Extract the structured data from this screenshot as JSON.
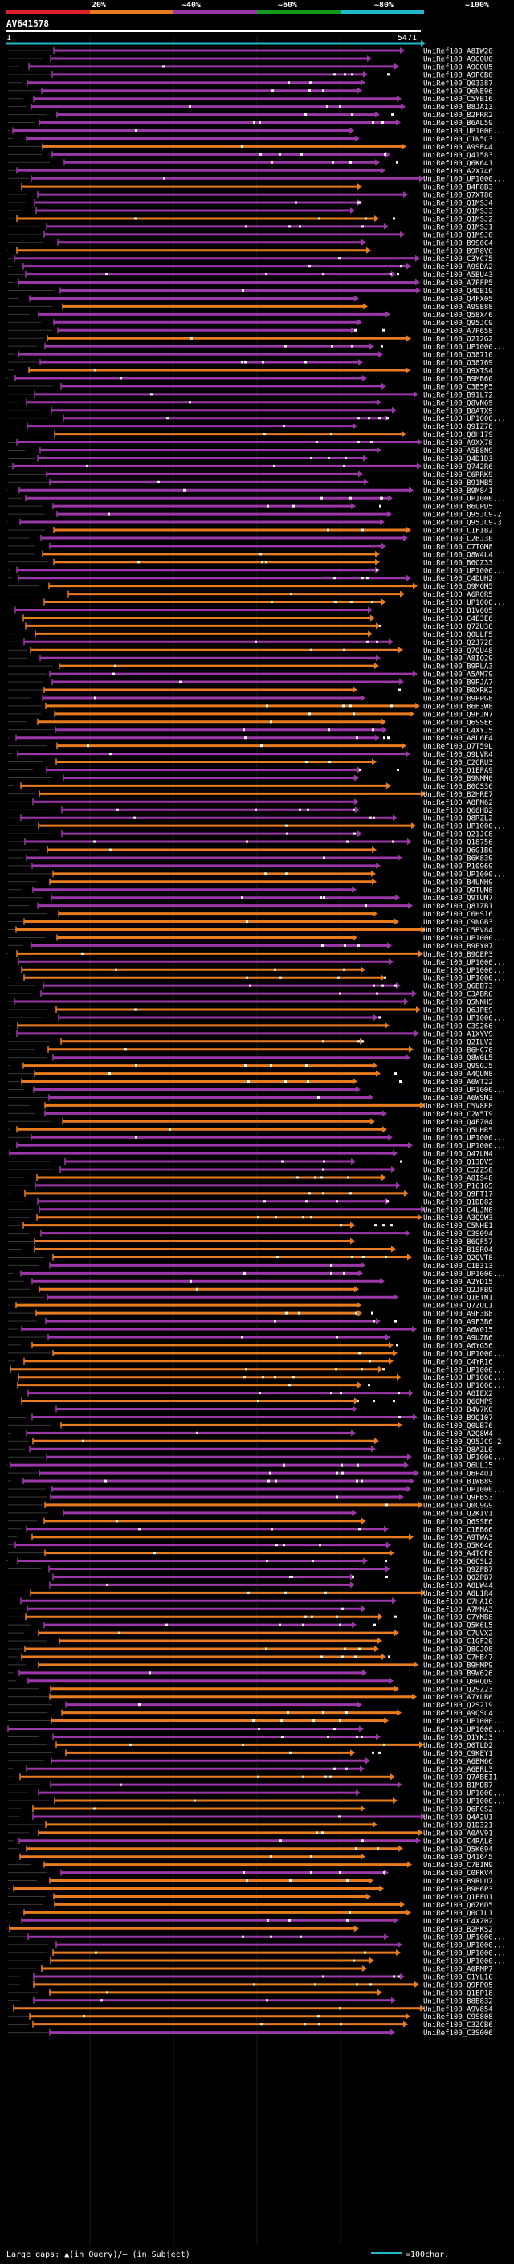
{
  "chart_data": {
    "type": "alignment-coverage",
    "query_name": "AV641578",
    "query_start_label": "1",
    "query_end_label": "5471",
    "scale_labels": [
      "20%",
      "~40%",
      "~60%",
      "~80%",
      "~100%"
    ],
    "identity_colors": {
      "lt20": "#e0202a",
      "20_40": "#e87b1e",
      "40_60": "#9b37a8",
      "60_80": "#129a1c",
      "80_100": "#1fb8c8"
    },
    "query_bar_color": "#1fb8c8",
    "legend_text": "Large gaps: ▲(in Query)/– (in Subject)",
    "legend_scale_text": "=100char.",
    "hits": [
      "UniRef100_A8IW20",
      "UniRef100_A9GOU0",
      "UniRef100_A9GOU5",
      "UniRef100_A9PCB0",
      "UniRef100_Q03387",
      "UniRef100_Q6NE96",
      "UniRef100_C5YB16",
      "UniRef100_B8JA13",
      "UniRef100_B2FRR2",
      "UniRef100_B6AL59",
      "UniRef100_UP1000...",
      "UniRef100_C1N5C3",
      "UniRef100_A9SE44",
      "UniRef100_Q41583",
      "UniRef100_Q6K641",
      "UniRef100_A2X746",
      "UniRef100_UP1000...",
      "UniRef100_B4F8B3",
      "UniRef100_Q7XT80",
      "UniRef100_Q1MSJ4",
      "UniRef100_Q1MSJ3",
      "UniRef100_Q1MSJ2",
      "UniRef100_Q1MSJ1",
      "UniRef100_Q1MSJ0",
      "UniRef100_B9S0C4",
      "UniRef100_B9R8V0",
      "UniRef100_C3YC75",
      "UniRef100_A9SDA2",
      "UniRef100_A5BU43",
      "UniRef100_A7PFP5",
      "UniRef100_Q4DB19",
      "UniRef100_Q4FX05",
      "UniRef100_A9SE88",
      "UniRef100_Q58X46",
      "UniRef100_Q95JC9",
      "UniRef100_A7P658",
      "UniRef100_Q212G2",
      "UniRef100_UP1000...",
      "UniRef100_Q38710",
      "UniRef100_Q38769",
      "UniRef100_Q9XTS4",
      "UniRef100_B9MB60",
      "UniRef100_C3B5P5",
      "UniRef100_B91L72",
      "UniRef100_Q8VN69",
      "UniRef100_B8ATX9",
      "UniRef100_UP1000...",
      "UniRef100_Q9IZ76",
      "UniRef100_Q8H179",
      "UniRef100_A9XX78",
      "UniRef100_A5E8N9",
      "UniRef100_Q4D1D3",
      "UniRef100_Q742R6",
      "UniRef100_C6RRK9",
      "UniRef100_B91MB5",
      "UniRef100_B9M841",
      "UniRef100_UP1000...",
      "UniRef100_B6UPD5",
      "UniRef100_Q95JC9-2",
      "UniRef100_Q95JC9-3",
      "UniRef100_C1FIB2",
      "UniRef100_C2BJ30",
      "UniRef100_C7TGM8",
      "UniRef100_Q8W4L4",
      "UniRef100_B6CZ33",
      "UniRef100_UP1000...",
      "UniRef100_C4DUH2",
      "UniRef100_Q9MGM5",
      "UniRef100_A6R0R5",
      "UniRef100_UP1000...",
      "UniRef100_B1V6Q5",
      "UniRef100_C4E3E6",
      "UniRef100_Q7ZU38",
      "UniRef100_Q0ULF5",
      "UniRef100_Q2J728",
      "UniRef100_Q7QU48",
      "UniRef100_A8IQ29",
      "UniRef100_B9RLA3",
      "UniRef100_A5AM79",
      "UniRef100_B9PJA7",
      "UniRef100_B0XRK2",
      "UniRef100_B9PPG8",
      "UniRef100_B6H3W8",
      "UniRef100_Q9FJM7",
      "UniRef100_Q6SSE6",
      "UniRef100_C4XYJ5",
      "UniRef100_A8L6F4",
      "UniRef100_Q7T59L",
      "UniRef100_Q9LVR4",
      "UniRef100_C2CRU3",
      "UniRef100_Q1EPA9",
      "UniRef100_B9NMM0",
      "UniRef100_B0CS36",
      "UniRef100_B2HRE7",
      "UniRef100_A8FM62",
      "UniRef100_Q66HB2",
      "UniRef100_Q8RZL2",
      "UniRef100_UP1000...",
      "UniRef100_Q21JC8",
      "UniRef100_Q18756",
      "UniRef100_Q6G1B0",
      "UniRef100_B6K839",
      "UniRef100_P10969",
      "UniRef100_UP1000...",
      "UniRef100_B4UNH9",
      "UniRef100_Q9TUM8",
      "UniRef100_Q9TUM7",
      "UniRef100_Q81ZB1",
      "UniRef100_C6HS16",
      "UniRef100_C9NGB3",
      "UniRef100_C5BV84",
      "UniRef100_UP1000...",
      "UniRef100_B9PY07",
      "UniRef100_B9QEP3",
      "UniRef100_UP1000...",
      "UniRef100_UP1000...",
      "UniRef100_UP1000...",
      "UniRef100_Q6BB73",
      "UniRef100_C3ABR6",
      "UniRef100_Q5NNH5",
      "UniRef100_Q6JPE9",
      "UniRef100_UP1000...",
      "UniRef100_C3S266",
      "UniRef100_A1XYV9",
      "UniRef100_Q2ILV2",
      "UniRef100_B6HC76",
      "UniRef100_Q8W0L5",
      "UniRef100_Q9SGJ5",
      "UniRef100_A4QUN8",
      "UniRef100_A6WT22",
      "UniRef100_UP1000...",
      "UniRef100_A6WSM3",
      "UniRef100_C5V8E8",
      "UniRef100_C2W5T9",
      "UniRef100_Q4FZ04",
      "UniRef100_Q5UHR5",
      "UniRef100_UP1000...",
      "UniRef100_UP1000...",
      "UniRef100_Q47LM4",
      "UniRef100_Q13DV5",
      "UniRef100_C5ZZ50",
      "UniRef100_A8IS48",
      "UniRef100_P16165",
      "UniRef100_Q9FT17",
      "UniRef100_Q1DD82",
      "UniRef100_C4LJN8",
      "UniRef100_A3Q9W3",
      "UniRef100_C5NHE1",
      "UniRef100_C3S094",
      "UniRef100_B6QF57",
      "UniRef100_B1SRO4",
      "UniRef100_Q2QVT8",
      "UniRef100_C1B313",
      "UniRef100_UP1000...",
      "UniRef100_A2YD15",
      "UniRef100_Q2JFB9",
      "UniRef100_Q16TN1",
      "UniRef100_Q7ZUL1",
      "UniRef100_A9F3B8",
      "UniRef100_A9F3B6",
      "UniRef100_A6W015",
      "UniRef100_A9UZB6",
      "UniRef100_A6YG56",
      "UniRef100_UP1000...",
      "UniRef100_C4YR16",
      "UniRef100_UP1000...",
      "UniRef100_UP1000...",
      "UniRef100_UP1000...",
      "UniRef100_A8IEX2",
      "UniRef100_Q60MP9",
      "UniRef100_B4V7K0",
      "UniRef100_B9Q107",
      "UniRef100_Q0UB76",
      "UniRef100_A2Q8W4",
      "UniRef100_Q95JC9-2",
      "UniRef100_Q8AZL0",
      "UniRef100_UP1000...",
      "UniRef100_Q6ULJ5",
      "UniRef100_Q6P4U1",
      "UniRef100_B1WB89",
      "UniRef100_UP1000...",
      "UniRef100_Q9FB53",
      "UniRef100_Q0C9G9",
      "UniRef100_Q2KIV1",
      "UniRef100_Q6SSE6",
      "UniRef100_C1EB66",
      "UniRef100_A9TWA3",
      "UniRef100_Q5K646",
      "UniRef100_A4TCF8",
      "UniRef100_Q6CSL2",
      "UniRef100_Q9ZPB7",
      "UniRef100_Q0ZPB7",
      "UniRef100_A8LW44",
      "UniRef100_A8L1R4",
      "UniRef100_C7HA16",
      "UniRef100_A7MMA3",
      "UniRef100_C7YMB8",
      "UniRef100_Q5K6L5",
      "UniRef100_C7UVX2",
      "UniRef100_C1GF20",
      "UniRef100_Q8CJQ8",
      "UniRef100_C7HB47",
      "UniRef100_B9HMP9",
      "UniRef100_B9W626",
      "UniRef100_Q8RQD9",
      "UniRef100_Q2SZ23",
      "UniRef100_A7YLB6",
      "UniRef100_Q2S219",
      "UniRef100_A9QSC4",
      "UniRef100_UP1000...",
      "UniRef100_UP1000...",
      "UniRef100_Q1YKJ3",
      "UniRef100_Q0TLD2",
      "UniRef100_C9KEY1",
      "UniRef100_A6BM66",
      "UniRef100_A6BRL3",
      "UniRef100_Q7ABEI1",
      "UniRef100_B1MDB7",
      "UniRef100_UP1000...",
      "UniRef100_UP1000...",
      "UniRef100_Q6PCS2",
      "UniRef100_Q4A2U1",
      "UniRef100_Q1D321",
      "UniRef100_A0AV91",
      "UniRef100_C4RAL6",
      "UniRef100_Q5K694",
      "UniRef100_Q41645",
      "UniRef100_C7BIM9",
      "UniRef100_C0PKV4",
      "UniRef100_B9RLU7",
      "UniRef100_B9H6P3",
      "UniRef100_Q1EFQ1",
      "UniRef100_Q6Z6D5",
      "UniRef100_Q0CIL1",
      "UniRef100_C4XZ02",
      "UniRef100_B2HKS2",
      "UniRef100_UP1000...",
      "UniRef100_UP1000...",
      "UniRef100_UP1000...",
      "UniRef100_UP1000...",
      "UniRef100_A0PMP7",
      "UniRef100_C1YL16",
      "UniRef100_Q9FPQ5",
      "UniRef100_Q1EP18",
      "UniRef100_B8B832",
      "UniRef100_A9V854",
      "UniRef100_C9S808",
      "UniRef100_C3ZCB6",
      "UniRef100_C3S006"
    ]
  }
}
